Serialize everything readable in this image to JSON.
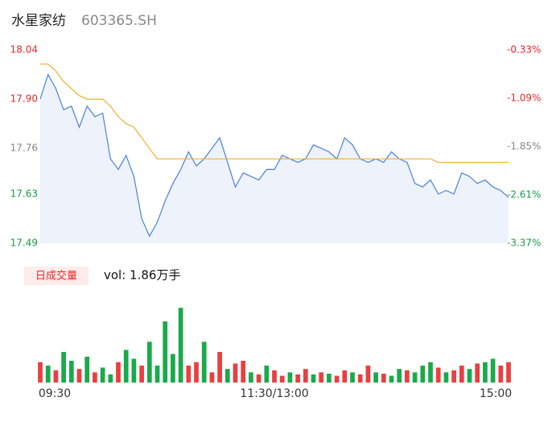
{
  "header": {
    "name": "水星家纺",
    "code": "603365.SH"
  },
  "chart_data": {
    "type": "line",
    "x": [
      0,
      4,
      8,
      12,
      16,
      20,
      24,
      28,
      32,
      36,
      40,
      44,
      48,
      52,
      56,
      60,
      64,
      68,
      72,
      76,
      80,
      84,
      88,
      92,
      96,
      100,
      104,
      108,
      112,
      116,
      120,
      124,
      128,
      132,
      136,
      140,
      144,
      148,
      152,
      156,
      160,
      164,
      168,
      172,
      176,
      180,
      184,
      188,
      192,
      196,
      200,
      204,
      208,
      212,
      216,
      220,
      224,
      228,
      232,
      236,
      240
    ],
    "xlim": [
      0,
      240
    ],
    "xticks": [
      {
        "value": 0,
        "label": "09:30"
      },
      {
        "value": 120,
        "label": "11:30/13:00"
      },
      {
        "value": 240,
        "label": "15:00"
      }
    ],
    "ylim": [
      17.49,
      18.04
    ],
    "yticks": [
      18.04,
      {
        "value": 17.9,
        "label": "17.90"
      },
      17.76,
      17.63,
      17.49
    ],
    "ytick_colors": [
      "#e8262a",
      "#e8262a",
      "#888888",
      "#1a9a4a",
      "#1a9a4a"
    ],
    "y2lim": [
      -3.37,
      -0.33
    ],
    "y2ticks": [
      {
        "value": -0.33,
        "label": "-0.33%"
      },
      {
        "value": -1.09,
        "label": "-1.09%"
      },
      {
        "value": -1.85,
        "label": "-1.85%"
      },
      {
        "value": -2.61,
        "label": "-2.61%"
      },
      {
        "value": -3.37,
        "label": "-3.37%"
      }
    ],
    "series": [
      {
        "color": "#4a7fe0",
        "fill": "#eef3fb",
        "values": [
          17.9,
          17.97,
          17.93,
          17.87,
          17.88,
          17.82,
          17.88,
          17.85,
          17.86,
          17.73,
          17.7,
          17.74,
          17.68,
          17.56,
          17.51,
          17.55,
          17.61,
          17.66,
          17.7,
          17.75,
          17.71,
          17.73,
          17.76,
          17.79,
          17.72,
          17.65,
          17.69,
          17.68,
          17.67,
          17.7,
          17.7,
          17.74,
          17.73,
          17.72,
          17.73,
          17.77,
          17.76,
          17.75,
          17.73,
          17.79,
          17.77,
          17.73,
          17.72,
          17.73,
          17.72,
          17.75,
          17.73,
          17.72,
          17.66,
          17.65,
          17.67,
          17.63,
          17.64,
          17.63,
          17.69,
          17.68,
          17.66,
          17.67,
          17.65,
          17.64,
          17.62
        ]
      },
      {
        "color": "#f0b030",
        "values": [
          18.0,
          18.0,
          17.98,
          17.95,
          17.93,
          17.91,
          17.9,
          17.9,
          17.9,
          17.88,
          17.85,
          17.83,
          17.82,
          17.79,
          17.76,
          17.73,
          17.73,
          17.73,
          17.73,
          17.73,
          17.73,
          17.73,
          17.73,
          17.73,
          17.73,
          17.73,
          17.73,
          17.73,
          17.73,
          17.73,
          17.73,
          17.73,
          17.73,
          17.73,
          17.73,
          17.73,
          17.73,
          17.73,
          17.73,
          17.73,
          17.73,
          17.73,
          17.73,
          17.73,
          17.73,
          17.73,
          17.73,
          17.73,
          17.73,
          17.73,
          17.73,
          17.72,
          17.72,
          17.72,
          17.72,
          17.72,
          17.72,
          17.72,
          17.72,
          17.72,
          17.72
        ]
      }
    ],
    "volume": {
      "title": "日成交量",
      "summary": "vol: 1.86万手",
      "ylim": [
        0,
        1150
      ],
      "values": [
        300,
        250,
        180,
        450,
        320,
        200,
        380,
        150,
        220,
        120,
        300,
        480,
        350,
        250,
        600,
        250,
        900,
        420,
        1100,
        250,
        300,
        600,
        150,
        450,
        200,
        280,
        320,
        150,
        120,
        250,
        180,
        100,
        150,
        120,
        200,
        120,
        150,
        130,
        100,
        180,
        150,
        120,
        250,
        150,
        130,
        100,
        200,
        180,
        150,
        250,
        300,
        220,
        150,
        180,
        250,
        200,
        280,
        300,
        350,
        250,
        300
      ],
      "colors": [
        "#e84040",
        "#1aaa4a",
        "#e84040",
        "#1aaa4a",
        "#1aaa4a",
        "#e84040",
        "#1aaa4a",
        "#e84040",
        "#1aaa4a",
        "#1aaa4a",
        "#e84040",
        "#1aaa4a",
        "#1aaa4a",
        "#e84040",
        "#1aaa4a",
        "#1aaa4a",
        "#1aaa4a",
        "#1aaa4a",
        "#1aaa4a",
        "#e84040",
        "#e84040",
        "#1aaa4a",
        "#e84040",
        "#e84040",
        "#1aaa4a",
        "#e84040",
        "#e84040",
        "#1aaa4a",
        "#e84040",
        "#1aaa4a",
        "#e84040",
        "#e84040",
        "#1aaa4a",
        "#e84040",
        "#e84040",
        "#1aaa4a",
        "#e84040",
        "#1aaa4a",
        "#e84040",
        "#e84040",
        "#1aaa4a",
        "#e84040",
        "#e84040",
        "#1aaa4a",
        "#e84040",
        "#1aaa4a",
        "#1aaa4a",
        "#e84040",
        "#1aaa4a",
        "#1aaa4a",
        "#1aaa4a",
        "#e84040",
        "#1aaa4a",
        "#e84040",
        "#e84040",
        "#1aaa4a",
        "#e84040",
        "#1aaa4a",
        "#1aaa4a",
        "#e84040",
        "#e84040"
      ]
    }
  }
}
